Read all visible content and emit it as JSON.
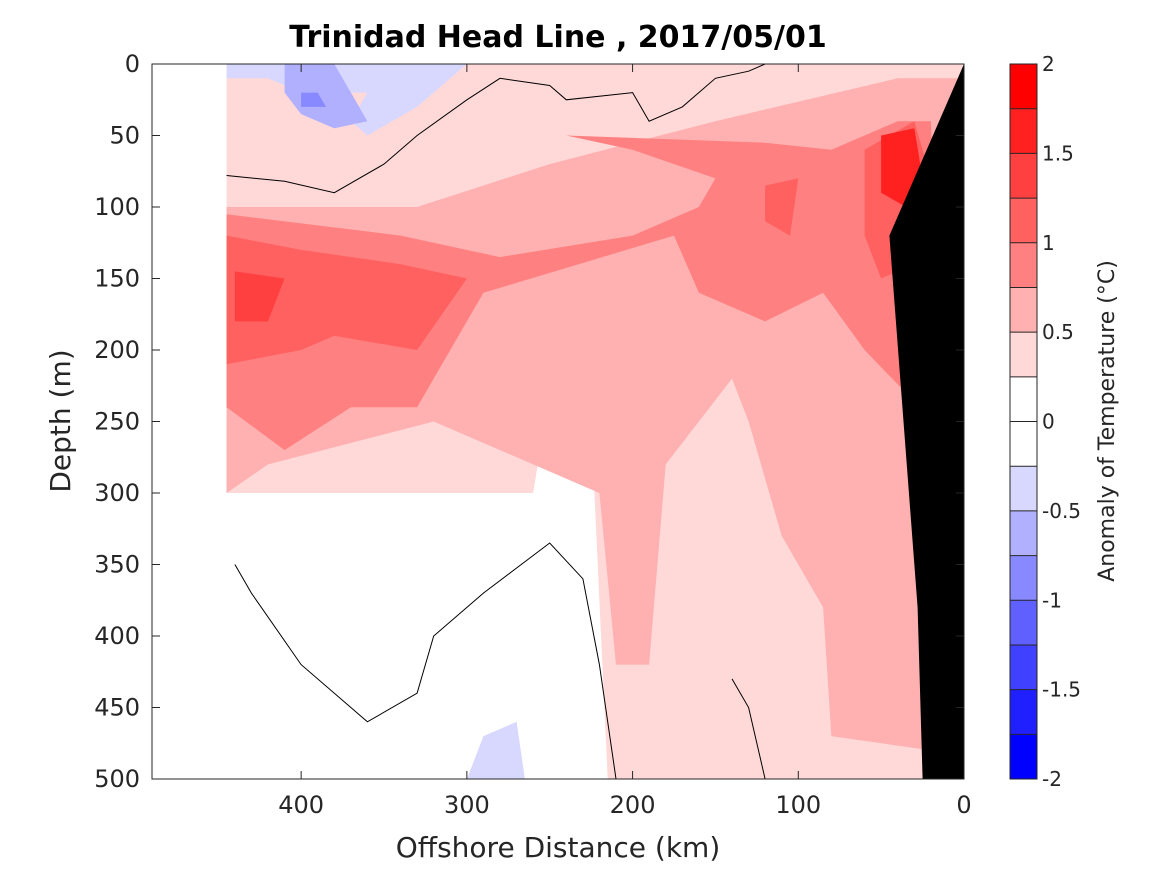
{
  "chart_data": {
    "type": "heatmap",
    "subtype": "filled-contour-section",
    "title": "Trinidad Head Line , 2017/05/01",
    "xlabel": "Offshore Distance (km)",
    "ylabel": "Depth (m)",
    "xlim": [
      490,
      0
    ],
    "ylim": [
      500,
      0
    ],
    "x_axis_reversed": true,
    "y_axis_reversed": true,
    "x_ticks": [
      400,
      300,
      200,
      100,
      0
    ],
    "x_tick_labels": [
      "400",
      "300",
      "200",
      "100",
      "0"
    ],
    "y_ticks": [
      0,
      50,
      100,
      150,
      200,
      250,
      300,
      350,
      400,
      450,
      500
    ],
    "y_tick_labels": [
      "0",
      "50",
      "100",
      "150",
      "200",
      "250",
      "300",
      "350",
      "400",
      "450",
      "500"
    ],
    "colorbar": {
      "label": "Anomaly of Temperature (°C)",
      "range": [
        -2,
        2
      ],
      "step": 0.25,
      "tick_values": [
        2,
        1.5,
        1,
        0.5,
        0,
        -0.5,
        -1,
        -1.5,
        -2
      ],
      "tick_labels": [
        "2",
        "1.5",
        "1",
        "0.5",
        "0",
        "-0.5",
        "-1",
        "-1.5",
        "-2"
      ],
      "levels": [
        {
          "range": [
            1.75,
            2.0
          ],
          "color": "#ff0000"
        },
        {
          "range": [
            1.5,
            1.75
          ],
          "color": "#ff2020"
        },
        {
          "range": [
            1.25,
            1.5
          ],
          "color": "#ff4040"
        },
        {
          "range": [
            1.0,
            1.25
          ],
          "color": "#ff6060"
        },
        {
          "range": [
            0.75,
            1.0
          ],
          "color": "#ff8080"
        },
        {
          "range": [
            0.5,
            0.75
          ],
          "color": "#ffb0b0"
        },
        {
          "range": [
            0.25,
            0.5
          ],
          "color": "#ffd8d8"
        },
        {
          "range": [
            0.0,
            0.25
          ],
          "color": "#ffffff"
        },
        {
          "range": [
            -0.25,
            0.0
          ],
          "color": "#ffffff"
        },
        {
          "range": [
            -0.5,
            -0.25
          ],
          "color": "#d8d8ff"
        },
        {
          "range": [
            -0.75,
            -0.5
          ],
          "color": "#b0b0ff"
        },
        {
          "range": [
            -1.0,
            -0.75
          ],
          "color": "#8888ff"
        },
        {
          "range": [
            -1.25,
            -1.0
          ],
          "color": "#6060ff"
        },
        {
          "range": [
            -1.5,
            -1.25
          ],
          "color": "#4040ff"
        },
        {
          "range": [
            -1.75,
            -1.5
          ],
          "color": "#2020ff"
        },
        {
          "range": [
            -2.0,
            -1.75
          ],
          "color": "#0000ff"
        }
      ]
    },
    "regions": [
      {
        "name": "warm-anomaly-0.25",
        "level": 0.25,
        "color": "#ffd8d8",
        "points": [
          [
            445,
            0
          ],
          [
            0,
            0
          ],
          [
            0,
            500
          ],
          [
            215,
            500
          ],
          [
            225,
            250
          ],
          [
            250,
            230
          ],
          [
            260,
            300
          ],
          [
            410,
            300
          ],
          [
            445,
            300
          ]
        ]
      },
      {
        "name": "warm-anomaly-0.5",
        "level": 0.5,
        "color": "#ffb0b0",
        "points": [
          [
            445,
            100
          ],
          [
            330,
            100
          ],
          [
            250,
            70
          ],
          [
            150,
            40
          ],
          [
            40,
            10
          ],
          [
            0,
            10
          ],
          [
            5,
            380
          ],
          [
            20,
            480
          ],
          [
            80,
            470
          ],
          [
            85,
            380
          ],
          [
            110,
            330
          ],
          [
            130,
            250
          ],
          [
            140,
            220
          ],
          [
            180,
            280
          ],
          [
            190,
            420
          ],
          [
            210,
            420
          ],
          [
            220,
            300
          ],
          [
            320,
            250
          ],
          [
            420,
            280
          ],
          [
            445,
            300
          ]
        ]
      },
      {
        "name": "warm-anomaly-0.75",
        "level": 0.75,
        "color": "#ff8080",
        "points": [
          [
            445,
            105
          ],
          [
            340,
            120
          ],
          [
            280,
            135
          ],
          [
            200,
            120
          ],
          [
            160,
            100
          ],
          [
            150,
            80
          ],
          [
            200,
            60
          ],
          [
            240,
            50
          ],
          [
            120,
            55
          ],
          [
            80,
            60
          ],
          [
            40,
            40
          ],
          [
            20,
            40
          ],
          [
            15,
            210
          ],
          [
            35,
            230
          ],
          [
            60,
            200
          ],
          [
            85,
            160
          ],
          [
            120,
            180
          ],
          [
            160,
            160
          ],
          [
            175,
            120
          ],
          [
            290,
            160
          ],
          [
            330,
            240
          ],
          [
            370,
            240
          ],
          [
            410,
            270
          ],
          [
            445,
            240
          ]
        ]
      },
      {
        "name": "warm-anomaly-1.0",
        "level": 1.0,
        "color": "#ff6060",
        "points": [
          [
            445,
            120
          ],
          [
            400,
            130
          ],
          [
            340,
            140
          ],
          [
            300,
            150
          ],
          [
            330,
            200
          ],
          [
            380,
            190
          ],
          [
            400,
            200
          ],
          [
            445,
            210
          ]
        ]
      },
      {
        "name": "warm-anomaly-1.0-b",
        "level": 1.0,
        "color": "#ff6060",
        "points": [
          [
            60,
            60
          ],
          [
            30,
            40
          ],
          [
            20,
            80
          ],
          [
            30,
            140
          ],
          [
            50,
            150
          ],
          [
            60,
            120
          ]
        ]
      },
      {
        "name": "warm-anomaly-1.0-c",
        "level": 1.0,
        "color": "#ff6060",
        "points": [
          [
            120,
            85
          ],
          [
            100,
            80
          ],
          [
            105,
            120
          ],
          [
            120,
            110
          ]
        ]
      },
      {
        "name": "warm-anomaly-1.25",
        "level": 1.25,
        "color": "#ff4040",
        "points": [
          [
            440,
            145
          ],
          [
            410,
            150
          ],
          [
            420,
            180
          ],
          [
            440,
            180
          ]
        ]
      },
      {
        "name": "warm-anomaly-1.5",
        "level": 1.5,
        "color": "#ff2020",
        "points": [
          [
            50,
            50
          ],
          [
            30,
            45
          ],
          [
            25,
            80
          ],
          [
            35,
            100
          ],
          [
            50,
            90
          ]
        ]
      },
      {
        "name": "cool-anomaly-0.25",
        "level": -0.25,
        "color": "#d8d8ff",
        "points": [
          [
            445,
            0
          ],
          [
            300,
            0
          ],
          [
            330,
            30
          ],
          [
            360,
            50
          ],
          [
            370,
            40
          ],
          [
            360,
            20
          ],
          [
            400,
            20
          ],
          [
            420,
            10
          ],
          [
            445,
            10
          ]
        ]
      },
      {
        "name": "cool-anomaly-0.5",
        "level": -0.5,
        "color": "#b0b0ff",
        "points": [
          [
            410,
            0
          ],
          [
            380,
            0
          ],
          [
            370,
            20
          ],
          [
            360,
            40
          ],
          [
            380,
            45
          ],
          [
            400,
            35
          ],
          [
            410,
            20
          ]
        ]
      },
      {
        "name": "cool-anomaly-0.75",
        "level": -0.75,
        "color": "#8888ff",
        "points": [
          [
            400,
            20
          ],
          [
            390,
            20
          ],
          [
            385,
            30
          ],
          [
            400,
            30
          ]
        ]
      },
      {
        "name": "cool-anomaly-bottom",
        "level": -0.25,
        "color": "#d8d8ff",
        "points": [
          [
            290,
            470
          ],
          [
            270,
            460
          ],
          [
            265,
            500
          ],
          [
            300,
            500
          ]
        ]
      }
    ],
    "zero_contours": [
      {
        "name": "zero-contour-surface",
        "points": [
          [
            445,
            78
          ],
          [
            410,
            82
          ],
          [
            380,
            90
          ],
          [
            350,
            70
          ],
          [
            330,
            50
          ],
          [
            300,
            25
          ],
          [
            280,
            10
          ],
          [
            250,
            15
          ],
          [
            240,
            25
          ],
          [
            200,
            20
          ],
          [
            190,
            40
          ],
          [
            170,
            30
          ],
          [
            150,
            10
          ],
          [
            130,
            5
          ],
          [
            120,
            0
          ]
        ]
      },
      {
        "name": "zero-contour-deep-left",
        "points": [
          [
            440,
            350
          ],
          [
            430,
            370
          ],
          [
            400,
            420
          ],
          [
            360,
            460
          ],
          [
            330,
            440
          ],
          [
            320,
            400
          ],
          [
            290,
            370
          ],
          [
            250,
            335
          ],
          [
            230,
            360
          ],
          [
            220,
            420
          ],
          [
            210,
            500
          ]
        ]
      },
      {
        "name": "zero-contour-deep-right",
        "points": [
          [
            140,
            430
          ],
          [
            130,
            450
          ],
          [
            120,
            500
          ]
        ]
      }
    ],
    "land": {
      "name": "continental-shelf",
      "color": "#000000",
      "points": [
        [
          0,
          0
        ],
        [
          0,
          500
        ],
        [
          25,
          500
        ],
        [
          28,
          380
        ],
        [
          45,
          120
        ],
        [
          0,
          0
        ]
      ]
    }
  }
}
